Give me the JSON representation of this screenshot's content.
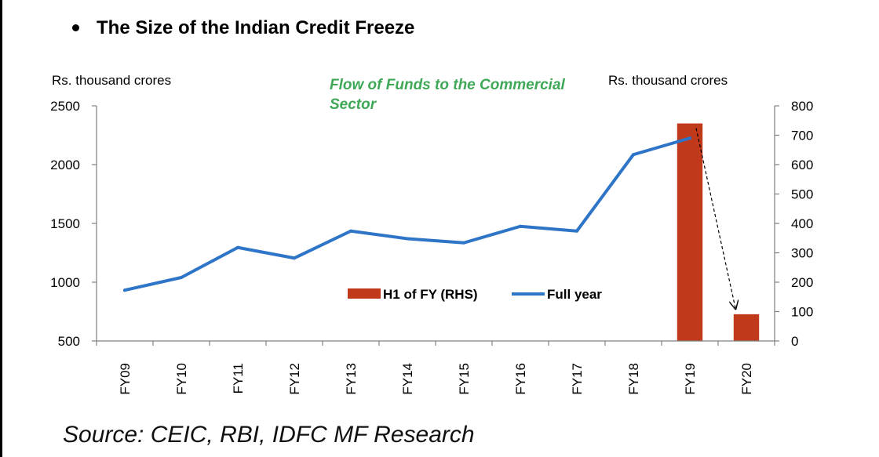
{
  "heading": "The Size of the Indian Credit Freeze",
  "source": "Source: CEIC, RBI, IDFC MF Research",
  "chart_data": {
    "type": "bar+line",
    "annotation": [
      "Flow of Funds to the Commercial",
      "Sector"
    ],
    "left_axis": {
      "unit": "Rs. thousand crores",
      "range": [
        500,
        2500
      ],
      "ticks": [
        2500,
        2000,
        1500,
        1000,
        500
      ]
    },
    "right_axis": {
      "unit": "Rs. thousand crores",
      "range": [
        0,
        800
      ],
      "ticks": [
        800,
        700,
        600,
        500,
        400,
        300,
        200,
        100,
        0
      ]
    },
    "categories": [
      "FY09",
      "FY10",
      "FY11",
      "FY12",
      "FY13",
      "FY14",
      "FY15",
      "FY16",
      "FY17",
      "FY18",
      "FY19",
      "FY20"
    ],
    "series": [
      {
        "name": "H1 of FY (RHS)",
        "type": "bar",
        "axis": "right",
        "color": "#C0391B",
        "values": [
          null,
          null,
          null,
          null,
          null,
          null,
          null,
          null,
          null,
          null,
          740,
          91
        ]
      },
      {
        "name": "Full year",
        "type": "line",
        "axis": "left",
        "color": "#2E75C8",
        "values": [
          932,
          1040,
          1295,
          1205,
          1435,
          1370,
          1335,
          1475,
          1435,
          2085,
          2225,
          null
        ]
      }
    ],
    "legend": [
      "H1 of FY (RHS)",
      "Full year"
    ],
    "legend_position": "center-right",
    "annotation_arrow": {
      "from": "FY19",
      "to": "FY20"
    }
  }
}
